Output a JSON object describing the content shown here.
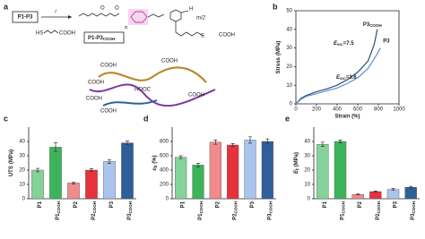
{
  "scheme": {
    "panel": "a",
    "reactant_box": "P1-P3",
    "reagent_label": "i",
    "thiol": {
      "left": "HS",
      "right": "COOH"
    },
    "product_box": {
      "main": "P1-P3",
      "sub": "COOH"
    },
    "structure_labels": [
      "O",
      "O",
      "n",
      "H",
      "m/2",
      "S",
      "COOH"
    ],
    "cartoon_labels": [
      "COOH",
      "COOH",
      "COOH",
      "COOH",
      "HOOC",
      "COOH",
      "COOH"
    ]
  },
  "chart_data": [
    {
      "type": "line",
      "panel": "b",
      "x_label": "Strain (%)",
      "y_label": {
        "main": "Stress",
        "unit": "(MPa)"
      },
      "xlim": [
        0,
        1000
      ],
      "xticks": [
        0,
        200,
        400,
        600,
        800,
        1000
      ],
      "ylim": [
        0,
        50
      ],
      "yticks": [
        0,
        10,
        20,
        30,
        40,
        50
      ],
      "series": [
        {
          "name": "P3",
          "name_sub": "COOH",
          "color": "#2c4f7c",
          "x": [
            0,
            50,
            100,
            200,
            300,
            400,
            500,
            600,
            700,
            760,
            790
          ],
          "values": [
            0,
            3,
            4.5,
            6.5,
            8,
            10,
            13,
            17,
            23,
            32,
            40
          ]
        },
        {
          "name": "P3",
          "name_sub": null,
          "color": "#5b8fd0",
          "x": [
            0,
            50,
            100,
            200,
            300,
            400,
            500,
            600,
            700,
            780,
            820
          ],
          "values": [
            0,
            2.5,
            4,
            5.5,
            7,
            8.5,
            11,
            14,
            19,
            26,
            30
          ]
        }
      ],
      "annotations": [
        {
          "main": "E",
          "sub": "SIC",
          "rest": "=7.5"
        },
        {
          "main": "E",
          "sub": "SIC",
          "rest": "=3.6"
        }
      ]
    },
    {
      "type": "bar",
      "panel": "c",
      "y_label": {
        "main": "UTS",
        "unit": "(MPa)"
      },
      "categories": [
        "P1",
        "P1",
        "P2",
        "P2",
        "P3",
        "P3"
      ],
      "category_subscripts": [
        null,
        "COOH",
        null,
        "COOH",
        null,
        "COOH"
      ],
      "values": [
        20,
        36,
        11,
        20,
        26,
        39
      ],
      "errors": [
        1.2,
        3,
        0.6,
        1,
        1.3,
        1.3
      ],
      "colors": [
        "#86d39a",
        "#3cb55a",
        "#f28b8b",
        "#e5323b",
        "#aac4ee",
        "#2f5f9a"
      ],
      "ylim": [
        0,
        50
      ],
      "yticks": [
        0,
        10,
        20,
        30,
        40
      ]
    },
    {
      "type": "bar",
      "panel": "d",
      "y_label": {
        "main": "ε",
        "sub": "b",
        "unit": "(%)"
      },
      "categories": [
        "P1",
        "P1",
        "P2",
        "P2",
        "P3",
        "P3"
      ],
      "category_subscripts": [
        null,
        "COOH",
        null,
        "COOH",
        null,
        "COOH"
      ],
      "values": [
        580,
        470,
        790,
        750,
        820,
        800
      ],
      "errors": [
        20,
        25,
        30,
        20,
        45,
        35
      ],
      "colors": [
        "#86d39a",
        "#3cb55a",
        "#f28b8b",
        "#e5323b",
        "#aac4ee",
        "#2f5f9a"
      ],
      "ylim": [
        0,
        1000
      ],
      "yticks": [
        0,
        200,
        400,
        600,
        800
      ]
    },
    {
      "type": "bar",
      "panel": "e",
      "y_label": {
        "main": "E",
        "sub": "t",
        "unit": "(MPa)"
      },
      "categories": [
        "P1",
        "P1",
        "P2",
        "P2",
        "P3",
        "P3"
      ],
      "category_subscripts": [
        null,
        "COOH",
        null,
        "COOH",
        null,
        "COOH"
      ],
      "values": [
        38,
        40,
        3,
        5,
        6.5,
        8
      ],
      "errors": [
        1.5,
        1,
        0.3,
        0.4,
        0.6,
        0.6
      ],
      "colors": [
        "#86d39a",
        "#3cb55a",
        "#f28b8b",
        "#e5323b",
        "#aac4ee",
        "#2f5f9a"
      ],
      "ylim": [
        0,
        50
      ],
      "yticks": [
        0,
        10,
        20,
        30,
        40
      ]
    }
  ]
}
